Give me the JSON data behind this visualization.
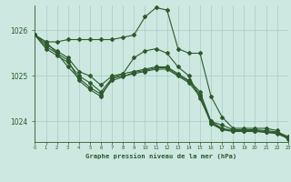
{
  "title": "Graphe pression niveau de la mer (hPa)",
  "background_color": "#cce8e0",
  "line_color": "#2d5a2d",
  "grid_color": "#a8ccc4",
  "text_color": "#2d5a2d",
  "xlim": [
    0,
    23
  ],
  "ylim": [
    1023.55,
    1026.55
  ],
  "yticks": [
    1024,
    1025,
    1026
  ],
  "xticks": [
    0,
    1,
    2,
    3,
    4,
    5,
    6,
    7,
    8,
    9,
    10,
    11,
    12,
    13,
    14,
    15,
    16,
    17,
    18,
    19,
    20,
    21,
    22,
    23
  ],
  "series": [
    [
      1025.9,
      1025.75,
      1025.75,
      1025.8,
      1025.8,
      1025.8,
      1025.8,
      1025.8,
      1025.85,
      1025.9,
      1026.3,
      1026.5,
      1026.45,
      1025.6,
      1025.5,
      1025.5,
      1024.55,
      1024.1,
      1023.85,
      1023.85,
      1023.85,
      1023.85,
      1023.8,
      1023.6
    ],
    [
      1025.9,
      1025.7,
      1025.55,
      1025.4,
      1025.1,
      1025.0,
      1024.8,
      1025.0,
      1025.05,
      1025.1,
      1025.15,
      1025.2,
      1025.2,
      1025.05,
      1024.9,
      1024.65,
      1024.0,
      1023.85,
      1023.8,
      1023.8,
      1023.8,
      1023.78,
      1023.75,
      1023.65
    ],
    [
      1025.9,
      1025.6,
      1025.45,
      1025.3,
      1025.0,
      1024.85,
      1024.65,
      1024.95,
      1025.0,
      1025.05,
      1025.1,
      1025.15,
      1025.15,
      1025.0,
      1024.85,
      1024.55,
      1023.95,
      1023.82,
      1023.78,
      1023.78,
      1023.78,
      1023.76,
      1023.73,
      1023.63
    ],
    [
      1025.9,
      1025.65,
      1025.5,
      1025.2,
      1024.95,
      1024.75,
      1024.6,
      1024.9,
      1024.98,
      1025.08,
      1025.12,
      1025.18,
      1025.18,
      1025.02,
      1024.88,
      1024.6,
      1023.98,
      1023.83,
      1023.79,
      1023.79,
      1023.79,
      1023.77,
      1023.74,
      1023.64
    ]
  ],
  "series_main": [
    1025.9,
    1025.75,
    1025.5,
    1025.35,
    1024.9,
    1024.7,
    1024.55,
    1024.95,
    1025.05,
    1025.4,
    1025.55,
    1025.6,
    1025.5,
    1025.2,
    1025.0,
    1024.5,
    1024.0,
    1023.92,
    1023.82,
    1023.82,
    1023.82,
    1023.8,
    1023.77,
    1023.67
  ]
}
